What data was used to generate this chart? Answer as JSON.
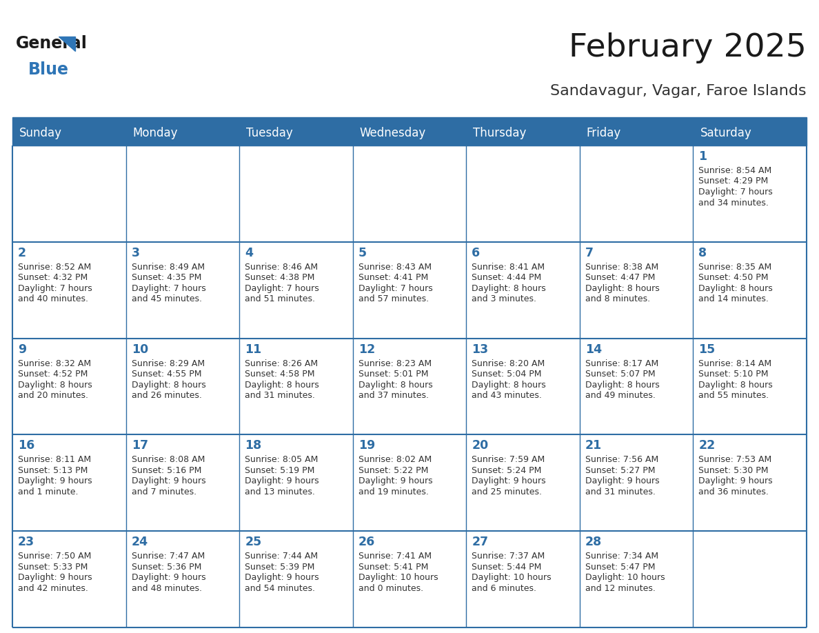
{
  "title": "February 2025",
  "subtitle": "Sandavagur, Vagar, Faroe Islands",
  "header_bg_color": "#2E6DA4",
  "header_text_color": "#FFFFFF",
  "border_color": "#2E6DA4",
  "title_color": "#1a1a1a",
  "subtitle_color": "#333333",
  "day_number_color": "#2E6DA4",
  "cell_text_color": "#333333",
  "cell_bg_color": "#FFFFFF",
  "days_of_week": [
    "Sunday",
    "Monday",
    "Tuesday",
    "Wednesday",
    "Thursday",
    "Friday",
    "Saturday"
  ],
  "weeks": [
    [
      {
        "day": null,
        "info": null
      },
      {
        "day": null,
        "info": null
      },
      {
        "day": null,
        "info": null
      },
      {
        "day": null,
        "info": null
      },
      {
        "day": null,
        "info": null
      },
      {
        "day": null,
        "info": null
      },
      {
        "day": 1,
        "info": "Sunrise: 8:54 AM\nSunset: 4:29 PM\nDaylight: 7 hours\nand 34 minutes."
      }
    ],
    [
      {
        "day": 2,
        "info": "Sunrise: 8:52 AM\nSunset: 4:32 PM\nDaylight: 7 hours\nand 40 minutes."
      },
      {
        "day": 3,
        "info": "Sunrise: 8:49 AM\nSunset: 4:35 PM\nDaylight: 7 hours\nand 45 minutes."
      },
      {
        "day": 4,
        "info": "Sunrise: 8:46 AM\nSunset: 4:38 PM\nDaylight: 7 hours\nand 51 minutes."
      },
      {
        "day": 5,
        "info": "Sunrise: 8:43 AM\nSunset: 4:41 PM\nDaylight: 7 hours\nand 57 minutes."
      },
      {
        "day": 6,
        "info": "Sunrise: 8:41 AM\nSunset: 4:44 PM\nDaylight: 8 hours\nand 3 minutes."
      },
      {
        "day": 7,
        "info": "Sunrise: 8:38 AM\nSunset: 4:47 PM\nDaylight: 8 hours\nand 8 minutes."
      },
      {
        "day": 8,
        "info": "Sunrise: 8:35 AM\nSunset: 4:50 PM\nDaylight: 8 hours\nand 14 minutes."
      }
    ],
    [
      {
        "day": 9,
        "info": "Sunrise: 8:32 AM\nSunset: 4:52 PM\nDaylight: 8 hours\nand 20 minutes."
      },
      {
        "day": 10,
        "info": "Sunrise: 8:29 AM\nSunset: 4:55 PM\nDaylight: 8 hours\nand 26 minutes."
      },
      {
        "day": 11,
        "info": "Sunrise: 8:26 AM\nSunset: 4:58 PM\nDaylight: 8 hours\nand 31 minutes."
      },
      {
        "day": 12,
        "info": "Sunrise: 8:23 AM\nSunset: 5:01 PM\nDaylight: 8 hours\nand 37 minutes."
      },
      {
        "day": 13,
        "info": "Sunrise: 8:20 AM\nSunset: 5:04 PM\nDaylight: 8 hours\nand 43 minutes."
      },
      {
        "day": 14,
        "info": "Sunrise: 8:17 AM\nSunset: 5:07 PM\nDaylight: 8 hours\nand 49 minutes."
      },
      {
        "day": 15,
        "info": "Sunrise: 8:14 AM\nSunset: 5:10 PM\nDaylight: 8 hours\nand 55 minutes."
      }
    ],
    [
      {
        "day": 16,
        "info": "Sunrise: 8:11 AM\nSunset: 5:13 PM\nDaylight: 9 hours\nand 1 minute."
      },
      {
        "day": 17,
        "info": "Sunrise: 8:08 AM\nSunset: 5:16 PM\nDaylight: 9 hours\nand 7 minutes."
      },
      {
        "day": 18,
        "info": "Sunrise: 8:05 AM\nSunset: 5:19 PM\nDaylight: 9 hours\nand 13 minutes."
      },
      {
        "day": 19,
        "info": "Sunrise: 8:02 AM\nSunset: 5:22 PM\nDaylight: 9 hours\nand 19 minutes."
      },
      {
        "day": 20,
        "info": "Sunrise: 7:59 AM\nSunset: 5:24 PM\nDaylight: 9 hours\nand 25 minutes."
      },
      {
        "day": 21,
        "info": "Sunrise: 7:56 AM\nSunset: 5:27 PM\nDaylight: 9 hours\nand 31 minutes."
      },
      {
        "day": 22,
        "info": "Sunrise: 7:53 AM\nSunset: 5:30 PM\nDaylight: 9 hours\nand 36 minutes."
      }
    ],
    [
      {
        "day": 23,
        "info": "Sunrise: 7:50 AM\nSunset: 5:33 PM\nDaylight: 9 hours\nand 42 minutes."
      },
      {
        "day": 24,
        "info": "Sunrise: 7:47 AM\nSunset: 5:36 PM\nDaylight: 9 hours\nand 48 minutes."
      },
      {
        "day": 25,
        "info": "Sunrise: 7:44 AM\nSunset: 5:39 PM\nDaylight: 9 hours\nand 54 minutes."
      },
      {
        "day": 26,
        "info": "Sunrise: 7:41 AM\nSunset: 5:41 PM\nDaylight: 10 hours\nand 0 minutes."
      },
      {
        "day": 27,
        "info": "Sunrise: 7:37 AM\nSunset: 5:44 PM\nDaylight: 10 hours\nand 6 minutes."
      },
      {
        "day": 28,
        "info": "Sunrise: 7:34 AM\nSunset: 5:47 PM\nDaylight: 10 hours\nand 12 minutes."
      },
      {
        "day": null,
        "info": null
      }
    ]
  ],
  "logo_general_color": "#1a1a1a",
  "logo_blue_color": "#2E75B6",
  "fig_width": 11.88,
  "fig_height": 9.18,
  "dpi": 100
}
